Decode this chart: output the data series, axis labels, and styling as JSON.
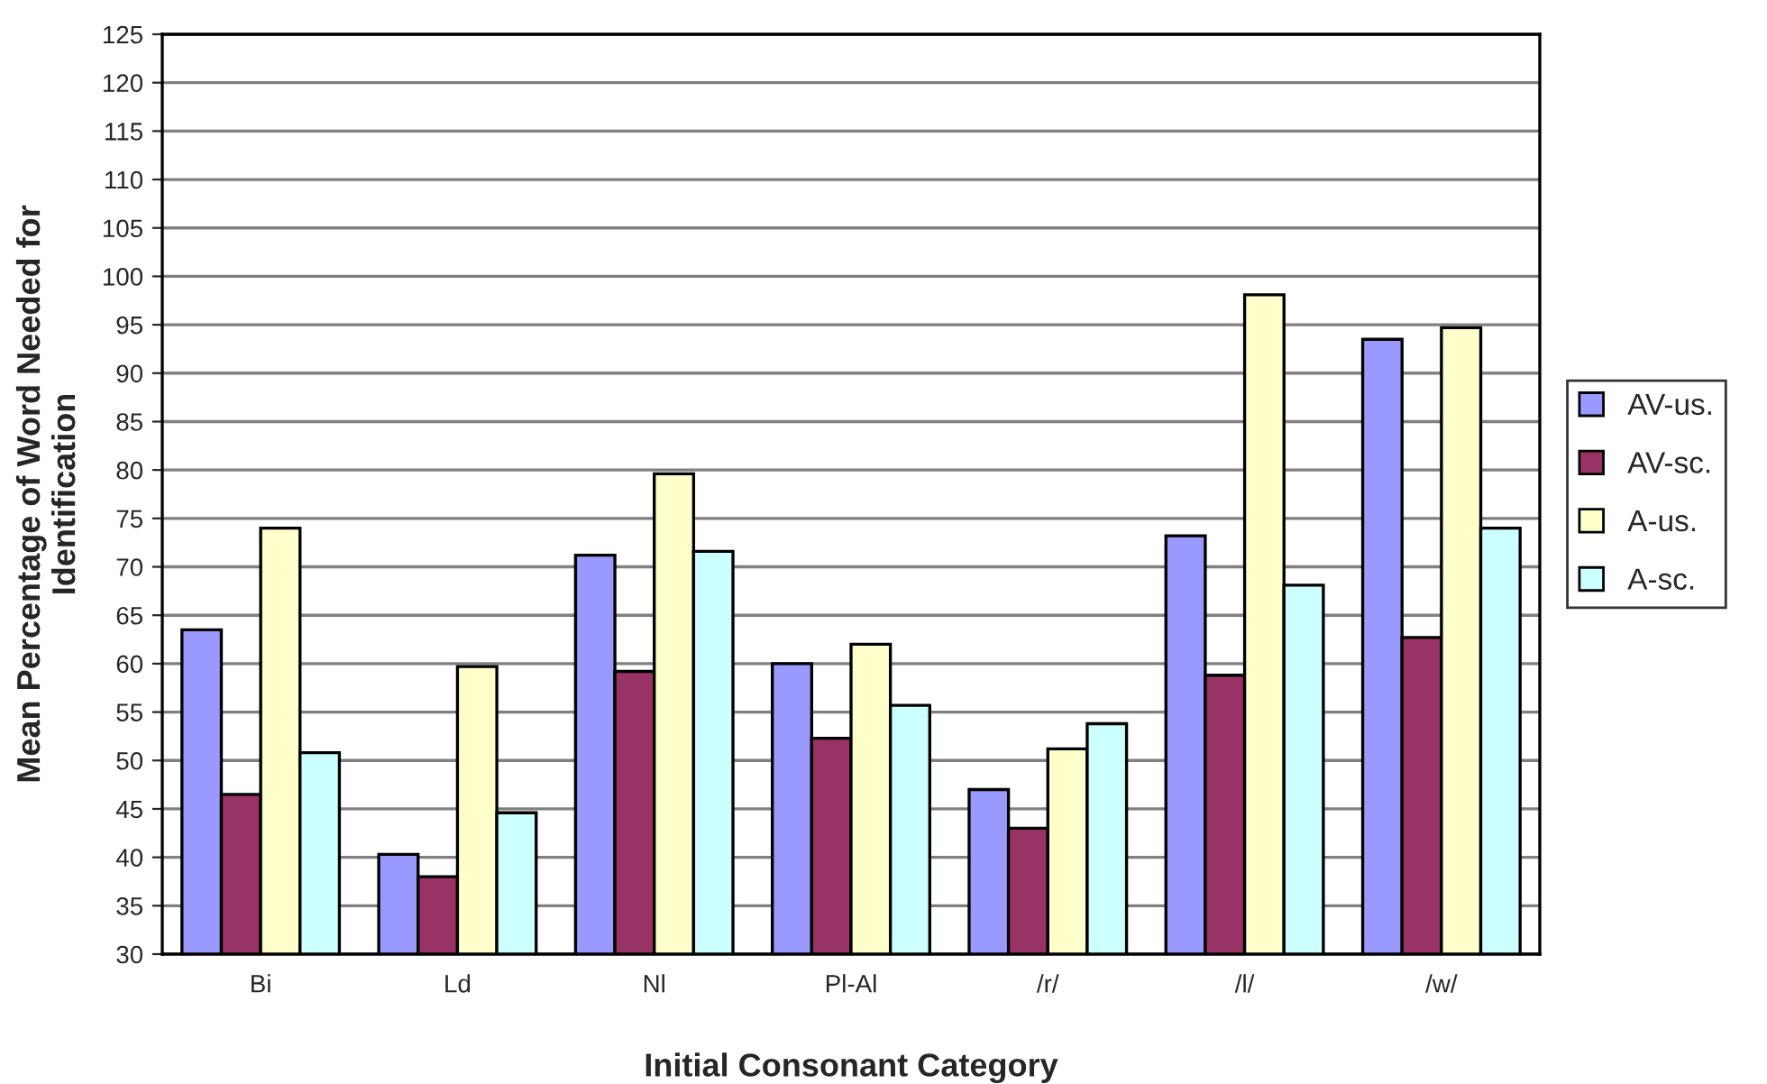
{
  "chart_data": {
    "type": "bar",
    "xlabel": "Initial Consonant Category",
    "ylabel": "Mean Percentage of Word Needed for Identification",
    "categories": [
      "Bi",
      "Ld",
      "Nl",
      "Pl-Al",
      "/r/",
      "/l/",
      "/w/"
    ],
    "series": [
      {
        "name": "AV-us.",
        "color": "#9999ff",
        "values": [
          63.5,
          40.3,
          71.2,
          60,
          47,
          73.2,
          93.5
        ]
      },
      {
        "name": "AV-sc.",
        "color": "#993366",
        "values": [
          46.5,
          38,
          59.2,
          52.3,
          43,
          58.8,
          62.7
        ]
      },
      {
        "name": "A-us.",
        "color": "#ffffcc",
        "values": [
          74,
          59.7,
          79.6,
          62,
          51.2,
          98.1,
          94.7
        ]
      },
      {
        "name": "A-sc.",
        "color": "#ccffff",
        "values": [
          50.8,
          44.6,
          71.6,
          55.7,
          53.8,
          68.1,
          74
        ]
      }
    ],
    "ylim": [
      30,
      125
    ],
    "yticks": [
      30,
      35,
      40,
      45,
      50,
      55,
      60,
      65,
      70,
      75,
      80,
      85,
      90,
      95,
      100,
      105,
      110,
      115,
      120,
      125
    ],
    "grid": "y",
    "legend": "right"
  }
}
